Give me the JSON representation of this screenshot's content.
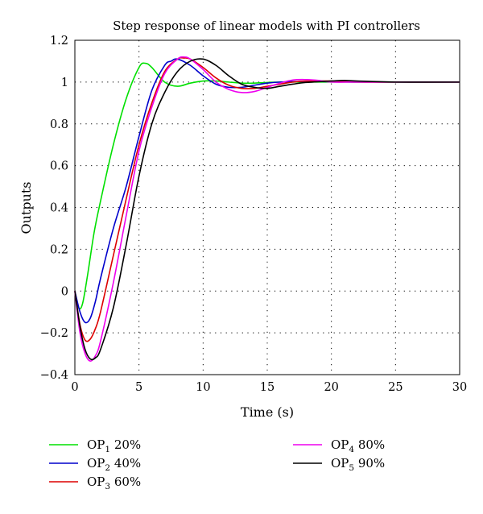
{
  "chart_data": {
    "type": "line",
    "title": "Step response of linear models with PI controllers",
    "xlabel": "Time (s)",
    "ylabel": "Outputs",
    "xlim": [
      0,
      30
    ],
    "ylim": [
      -0.4,
      1.2
    ],
    "xticks": [
      "0",
      "5",
      "10",
      "15",
      "20",
      "25",
      "30"
    ],
    "yticks": [
      "−0.4",
      "−0.2",
      "0",
      "0.2",
      "0.4",
      "0.6",
      "0.8",
      "1",
      "1.2"
    ],
    "grid": true,
    "legend_position": "bottom",
    "series": [
      {
        "name_base": "OP",
        "name_sub": "1",
        "name_suffix": " 20%",
        "color": "#00e000",
        "x": [
          0,
          0.3,
          0.6,
          1.0,
          1.5,
          2,
          3,
          4,
          5,
          5.5,
          6,
          7,
          8,
          9,
          10,
          11,
          12,
          13,
          14,
          15,
          16,
          18,
          20,
          22,
          25,
          30
        ],
        "y": [
          0,
          -0.08,
          -0.06,
          0.08,
          0.28,
          0.43,
          0.7,
          0.92,
          1.07,
          1.09,
          1.07,
          1.0,
          0.98,
          0.995,
          1.005,
          1.005,
          1.0,
          0.995,
          0.995,
          0.998,
          1.0,
          1.0,
          1.0,
          1.0,
          1.0,
          1.0
        ]
      },
      {
        "name_base": "OP",
        "name_sub": "2",
        "name_suffix": " 40%",
        "color": "#0000cc",
        "x": [
          0,
          0.4,
          0.8,
          1.2,
          1.6,
          2,
          3,
          4,
          5,
          6,
          7,
          7.5,
          8,
          9,
          10,
          11,
          12,
          13,
          14,
          15,
          16,
          18,
          20,
          22,
          25,
          30
        ],
        "y": [
          0,
          -0.1,
          -0.15,
          -0.13,
          -0.05,
          0.06,
          0.3,
          0.5,
          0.74,
          0.96,
          1.08,
          1.1,
          1.11,
          1.08,
          1.03,
          0.99,
          0.975,
          0.975,
          0.985,
          0.995,
          1.0,
          1.003,
          1.002,
          1.0,
          1.0,
          1.0
        ]
      },
      {
        "name_base": "OP",
        "name_sub": "3",
        "name_suffix": " 60%",
        "color": "#dd0000",
        "x": [
          0,
          0.4,
          0.8,
          1.2,
          1.6,
          2,
          3,
          4,
          5,
          6,
          7,
          8,
          8.5,
          9,
          10,
          11,
          12,
          13,
          14,
          15,
          16,
          17,
          18,
          20,
          22,
          25,
          30
        ],
        "y": [
          0,
          -0.16,
          -0.235,
          -0.23,
          -0.18,
          -0.1,
          0.17,
          0.44,
          0.7,
          0.9,
          1.05,
          1.11,
          1.115,
          1.11,
          1.07,
          1.02,
          0.985,
          0.97,
          0.97,
          0.98,
          0.99,
          1.0,
          1.005,
          1.005,
          1.0,
          1.0,
          1.0
        ]
      },
      {
        "name_base": "OP",
        "name_sub": "4",
        "name_suffix": " 80%",
        "color": "#ee00ee",
        "x": [
          0,
          0.4,
          0.8,
          1.2,
          1.6,
          2,
          3,
          4,
          5,
          6,
          7,
          8,
          8.5,
          9,
          10,
          11,
          12,
          13,
          14,
          15,
          16,
          17,
          18,
          19,
          20,
          22,
          25,
          30
        ],
        "y": [
          0,
          -0.2,
          -0.3,
          -0.335,
          -0.31,
          -0.24,
          0.04,
          0.36,
          0.67,
          0.88,
          1.04,
          1.11,
          1.12,
          1.11,
          1.06,
          1.0,
          0.965,
          0.95,
          0.955,
          0.975,
          0.995,
          1.01,
          1.012,
          1.008,
          1.0,
          1.0,
          1.0,
          1.0
        ]
      },
      {
        "name_base": "OP",
        "name_sub": "5",
        "name_suffix": " 90%",
        "color": "#000000",
        "x": [
          0,
          0.4,
          0.8,
          1.2,
          1.6,
          2,
          3,
          4,
          5,
          6,
          7,
          8,
          9,
          10,
          11,
          12,
          13,
          14,
          15,
          16,
          17,
          18,
          20,
          21,
          22,
          25,
          30
        ],
        "y": [
          0,
          -0.17,
          -0.28,
          -0.325,
          -0.32,
          -0.28,
          -0.08,
          0.22,
          0.55,
          0.8,
          0.95,
          1.05,
          1.1,
          1.11,
          1.08,
          1.03,
          0.99,
          0.975,
          0.97,
          0.98,
          0.99,
          0.998,
          1.005,
          1.008,
          1.005,
          1.0,
          1.0
        ]
      }
    ]
  }
}
